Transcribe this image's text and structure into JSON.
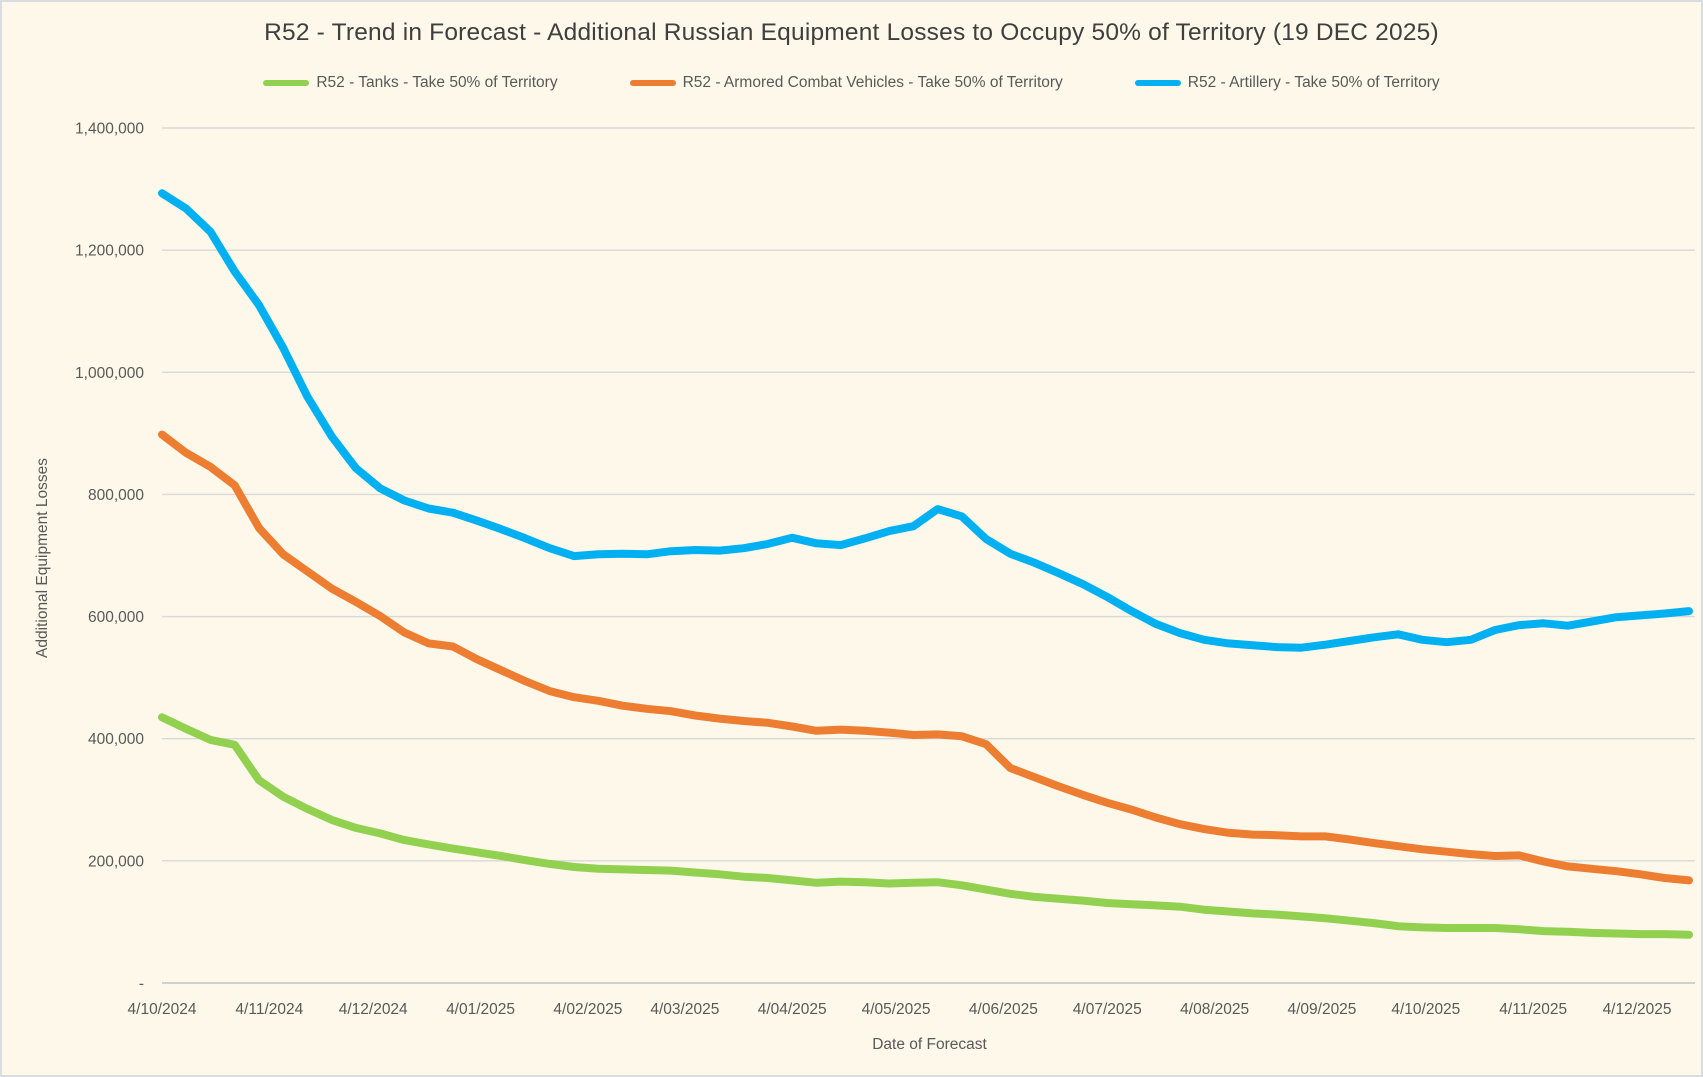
{
  "title": "R52 - Trend in Forecast - Additional Russian Equipment Losses to Occupy 50% of Territory (19 DEC 2025)",
  "chart_data": {
    "type": "line",
    "title": "R52 - Trend in Forecast - Additional Russian Equipment Losses to Occupy 50% of Territory (19 DEC 2025)",
    "xlabel": "Date of Forecast",
    "ylabel": "Additional Equipment Losses",
    "ylim": [
      0,
      1400000
    ],
    "grid": "horizontal",
    "legend_position": "top-center",
    "background_color": "#FDF8EA",
    "gridline_color": "#D9D9D9",
    "axisline_color": "#C2C2C2",
    "x_tick_labels": [
      "4/10/2024",
      "4/11/2024",
      "4/12/2024",
      "4/01/2025",
      "4/02/2025",
      "4/03/2025",
      "4/04/2025",
      "4/05/2025",
      "4/06/2025",
      "4/07/2025",
      "4/08/2025",
      "4/09/2025",
      "4/10/2025",
      "4/11/2025",
      "4/12/2025"
    ],
    "x_tick_day_offsets": [
      0,
      31,
      61,
      92,
      123,
      151,
      182,
      212,
      243,
      273,
      304,
      335,
      365,
      396,
      426
    ],
    "x_total_days": 441,
    "points_cadence": "weekly",
    "y_ticks": [
      {
        "label": "1,400,000",
        "value": 1400000
      },
      {
        "label": "1,200,000",
        "value": 1200000
      },
      {
        "label": "1,000,000",
        "value": 1000000
      },
      {
        "label": "800,000",
        "value": 800000
      },
      {
        "label": "600,000",
        "value": 600000
      },
      {
        "label": "400,000",
        "value": 400000
      },
      {
        "label": "200,000",
        "value": 200000
      },
      {
        "label": "-",
        "value": 0
      }
    ],
    "series": [
      {
        "name": "R52 - Tanks - Take 50% of Territory",
        "color": "#92D050",
        "values": [
          435000,
          416000,
          398000,
          390000,
          332000,
          305000,
          285000,
          267000,
          254000,
          245000,
          234000,
          227000,
          220000,
          214000,
          208000,
          201000,
          195000,
          190000,
          187000,
          186000,
          185000,
          184000,
          181000,
          178000,
          174000,
          172000,
          168000,
          164000,
          166000,
          165000,
          163000,
          164000,
          165000,
          160000,
          153000,
          146000,
          141000,
          138000,
          135000,
          131000,
          129000,
          127000,
          125000,
          120000,
          117000,
          114000,
          112000,
          109000,
          106000,
          102000,
          98000,
          93000,
          91000,
          90000,
          90000,
          90000,
          88000,
          85000,
          84000,
          82000,
          81000,
          80000,
          80000,
          79000
        ]
      },
      {
        "name": "R52 - Armored Combat Vehicles - Take 50% of Territory",
        "color": "#ED7D31",
        "values": [
          898000,
          868000,
          845000,
          815000,
          745000,
          702000,
          674000,
          646000,
          624000,
          601000,
          574000,
          556000,
          551000,
          530000,
          512000,
          494000,
          478000,
          468000,
          462000,
          454000,
          449000,
          445000,
          438000,
          433000,
          429000,
          426000,
          420000,
          413000,
          415000,
          413000,
          410000,
          406000,
          407000,
          404000,
          391000,
          352000,
          337000,
          322000,
          308000,
          295000,
          284000,
          271000,
          260000,
          252000,
          246000,
          243000,
          242000,
          240000,
          240000,
          235000,
          229000,
          224000,
          219000,
          215000,
          211000,
          208000,
          209000,
          199000,
          191000,
          187000,
          183000,
          178000,
          172000,
          168000
        ]
      },
      {
        "name": "R52 - Artillery - Take 50% of Territory",
        "color": "#00B0F0",
        "values": [
          1293000,
          1268000,
          1230000,
          1165000,
          1110000,
          1040000,
          960000,
          895000,
          843000,
          810000,
          790000,
          777000,
          770000,
          757000,
          743000,
          728000,
          712000,
          699000,
          702000,
          703000,
          702000,
          707000,
          709000,
          708000,
          712000,
          719000,
          729000,
          720000,
          717000,
          728000,
          740000,
          748000,
          776000,
          764000,
          727000,
          703000,
          688000,
          671000,
          653000,
          632000,
          609000,
          588000,
          573000,
          562000,
          556000,
          553000,
          550000,
          549000,
          554000,
          560000,
          566000,
          571000,
          562000,
          558000,
          562000,
          578000,
          586000,
          589000,
          585000,
          592000,
          599000,
          602000,
          605000,
          609000
        ]
      }
    ],
    "legend_order": [
      0,
      1,
      2
    ]
  },
  "axes": {
    "x_title": "Date of Forecast",
    "y_title": "Additional Equipment Losses"
  }
}
